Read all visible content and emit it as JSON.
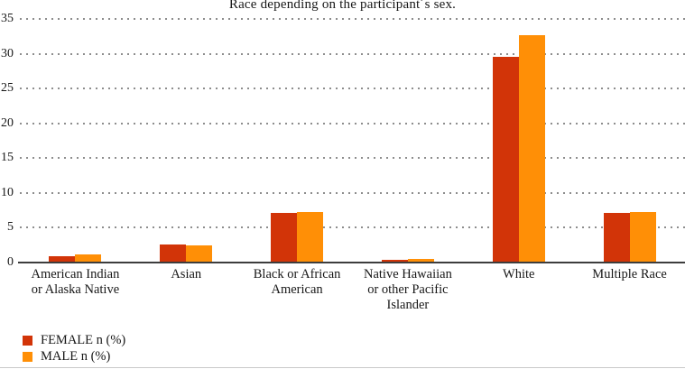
{
  "title": "Race depending on the participant´s sex.",
  "legend": {
    "items": [
      {
        "label": "FEMALE n (%)",
        "color": "#d23408"
      },
      {
        "label": "MALE n (%)",
        "color": "#ff8f06"
      }
    ]
  },
  "chart_data": {
    "type": "bar",
    "title": "Race depending on the participant´s sex.",
    "xlabel": "",
    "ylabel": "",
    "categories": [
      "American Indian\nor Alaska Native",
      "Asian",
      "Black or African\nAmerican",
      "Native Hawaiian\nor other Pacific\nIslander",
      "White",
      "Multiple Race"
    ],
    "series": [
      {
        "name": "FEMALE n (%)",
        "color": "#d23408",
        "values": [
          0.9,
          2.6,
          7.1,
          0.4,
          29.6,
          7.1
        ]
      },
      {
        "name": "MALE n (%)",
        "color": "#ff8f06",
        "values": [
          1.2,
          2.5,
          7.3,
          0.5,
          32.7,
          7.3
        ]
      }
    ],
    "ylim": [
      0,
      35
    ],
    "yticks": [
      0,
      5,
      10,
      15,
      20,
      25,
      30,
      35
    ],
    "grid": "horizontal-dotted",
    "gridline_color": "#8d8d8d",
    "axis_line_color": "#3d3d3d",
    "legend_position": "bottom-left"
  }
}
